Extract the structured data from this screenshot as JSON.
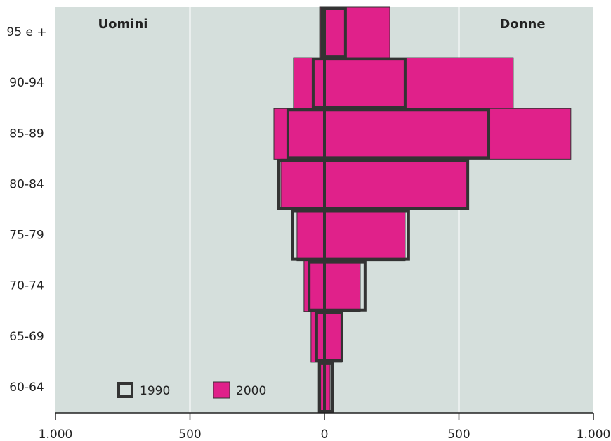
{
  "chart_data": {
    "type": "pyramid",
    "left_label": "Uomini",
    "right_label": "Donne",
    "categories": [
      "95 e +",
      "90-94",
      "85-89",
      "80-84",
      "75-79",
      "70-74",
      "65-69",
      "60-64"
    ],
    "series": [
      {
        "name": "2000",
        "color": "#e0218a",
        "style": "filled",
        "left": [
          -18,
          -115,
          -188,
          -162,
          -102,
          -76,
          -50,
          -23
        ],
        "right": [
          243,
          702,
          916,
          530,
          300,
          133,
          65,
          21
        ]
      },
      {
        "name": "1990",
        "color": "#333333",
        "style": "outline",
        "left": [
          -10,
          -42,
          -136,
          -170,
          -120,
          -57,
          -29,
          -18
        ],
        "right": [
          78,
          300,
          611,
          533,
          313,
          151,
          65,
          29
        ]
      }
    ],
    "xlim": [
      -1000,
      1000
    ],
    "xticks": [
      {
        "value": -1000,
        "label": "1.000"
      },
      {
        "value": -500,
        "label": "500"
      },
      0,
      500,
      {
        "value": 1000,
        "label": "1.000"
      }
    ],
    "grid": true,
    "background": "#d5dfdc",
    "legend": "bottom-left"
  }
}
